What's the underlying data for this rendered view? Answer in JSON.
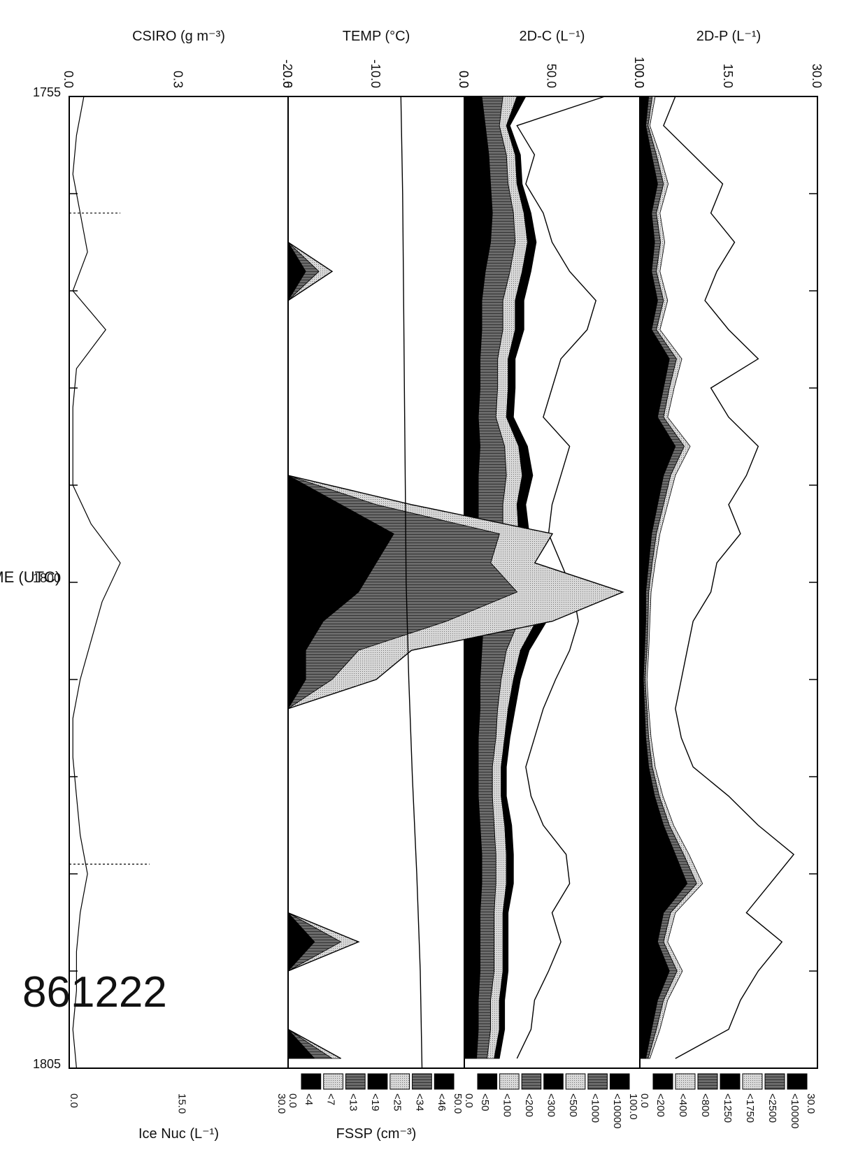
{
  "flight_label": "861222",
  "chart_data": [
    {
      "type": "area",
      "panel": "2d-p",
      "ylabel": "2D-P (L⁻¹)",
      "ylim": [
        0,
        30
      ],
      "left_ticks": [
        "0.0",
        "15.0",
        "30.0"
      ],
      "right_top": "30.0",
      "right_bottom": "0.0",
      "legend": [
        "<10000",
        "<2500",
        "<1750",
        "<1250",
        "<800",
        "<400",
        "<200"
      ],
      "legend_colors": [
        "#000000",
        "#8a8a8a",
        "#cfcfcf",
        "#000000",
        "#8a8a8a",
        "#cfcfcf",
        "#000000"
      ],
      "x": [
        0,
        0.3,
        0.6,
        0.9,
        1.2,
        1.5,
        1.8,
        2.1,
        2.4,
        2.7,
        3.0,
        3.3,
        3.6,
        3.9,
        4.2,
        4.5,
        4.8,
        5.1,
        5.4,
        5.7,
        6.0,
        6.3,
        6.6,
        6.9,
        7.2,
        7.5,
        7.8,
        8.1,
        8.4,
        8.7,
        9.0,
        9.3,
        9.6,
        9.9
      ],
      "total": [
        6,
        4,
        9,
        14,
        12,
        16,
        13,
        11,
        15,
        20,
        12,
        15,
        20,
        18,
        15,
        17,
        13,
        12,
        9,
        8,
        7,
        6,
        7,
        9,
        15,
        20,
        26,
        22,
        18,
        24,
        20,
        17,
        15,
        6
      ],
      "series": [
        {
          "values": [
            1.5,
            1,
            2,
            3,
            2,
            2.5,
            2,
            3,
            2,
            5,
            4,
            3,
            6,
            4,
            3,
            2,
            1.5,
            1,
            1,
            0.8,
            0.6,
            0.8,
            1,
            1.5,
            2.5,
            4,
            6,
            8,
            4,
            3,
            5,
            3,
            2,
            1
          ]
        },
        {
          "values": [
            0.6,
            0.4,
            0.8,
            1,
            0.8,
            1,
            0.8,
            1,
            0.8,
            1.2,
            1,
            1,
            1.5,
            1.2,
            1,
            0.8,
            0.6,
            0.5,
            0.4,
            0.4,
            0.3,
            0.4,
            0.5,
            0.6,
            0.8,
            1,
            1.4,
            1.6,
            1.2,
            1,
            1.3,
            1,
            0.8,
            0.4
          ]
        },
        {
          "values": [
            0.5,
            0.3,
            0.6,
            0.8,
            0.6,
            0.7,
            0.6,
            0.7,
            0.6,
            0.9,
            0.8,
            0.7,
            1,
            0.8,
            0.7,
            0.6,
            0.5,
            0.4,
            0.3,
            0.3,
            0.3,
            0.3,
            0.4,
            0.5,
            0.6,
            0.7,
            0.9,
            1,
            0.8,
            0.7,
            0.9,
            0.7,
            0.6,
            0.3
          ]
        }
      ]
    },
    {
      "type": "area",
      "panel": "2d-c",
      "ylabel": "2D-C (L⁻¹)",
      "ylim": [
        0,
        100
      ],
      "left_ticks": [
        "0.0",
        "50.0",
        "100.0"
      ],
      "right_top": "100.0",
      "right_bottom": "0.0",
      "legend": [
        "<10000",
        "<1000",
        "<500",
        "<300",
        "<200",
        "<100",
        "<50"
      ],
      "legend_colors": [
        "#000000",
        "#8a8a8a",
        "#cfcfcf",
        "#000000",
        "#8a8a8a",
        "#cfcfcf",
        "#000000"
      ],
      "x": [
        0,
        0.3,
        0.6,
        0.9,
        1.2,
        1.5,
        1.8,
        2.1,
        2.4,
        2.7,
        3.0,
        3.3,
        3.6,
        3.9,
        4.2,
        4.5,
        4.8,
        5.1,
        5.4,
        5.7,
        6.0,
        6.3,
        6.6,
        6.9,
        7.2,
        7.5,
        7.8,
        8.1,
        8.4,
        8.7,
        9.0,
        9.3,
        9.6,
        9.9
      ],
      "total": [
        80,
        30,
        40,
        35,
        45,
        50,
        60,
        75,
        70,
        55,
        50,
        45,
        60,
        55,
        50,
        48,
        55,
        62,
        65,
        60,
        52,
        45,
        40,
        35,
        38,
        45,
        58,
        60,
        50,
        55,
        48,
        40,
        38,
        30
      ],
      "series": [
        {
          "values": [
            10,
            12,
            14,
            15,
            16,
            15,
            12,
            10,
            10,
            9,
            9,
            8,
            9,
            8,
            8,
            8,
            9,
            10,
            11,
            10,
            9,
            9,
            8,
            8,
            8,
            9,
            10,
            10,
            9,
            9,
            9,
            8,
            8,
            7
          ]
        },
        {
          "values": [
            12,
            8,
            10,
            10,
            12,
            14,
            14,
            12,
            12,
            10,
            10,
            10,
            14,
            16,
            14,
            14,
            16,
            18,
            20,
            14,
            12,
            10,
            10,
            8,
            8,
            8,
            8,
            8,
            8,
            8,
            8,
            7,
            7,
            6
          ]
        },
        {
          "values": [
            8,
            4,
            5,
            5,
            6,
            7,
            7,
            7,
            7,
            6,
            6,
            6,
            8,
            9,
            8,
            9,
            9,
            10,
            10,
            8,
            7,
            6,
            5,
            5,
            5,
            6,
            6,
            6,
            5,
            5,
            5,
            5,
            5,
            4
          ]
        },
        {
          "values": [
            5,
            2,
            3,
            3,
            4,
            5,
            5,
            5,
            5,
            4,
            4,
            4,
            5,
            6,
            5,
            6,
            6,
            6,
            6,
            5,
            4,
            4,
            3,
            3,
            3,
            4,
            4,
            4,
            3,
            3,
            3,
            3,
            3,
            3
          ]
        }
      ]
    },
    {
      "type": "area",
      "panel": "temp-fssp",
      "ylabel": "TEMP (°C)",
      "ylim": [
        -20,
        0
      ],
      "left_ticks": [
        "-20.0",
        "-10.0",
        "0.0"
      ],
      "right_top": "50.0",
      "right_bottom": "0.0",
      "right_label": "FSSP (cm⁻³)",
      "legend": [
        "<46",
        "<34",
        "<25",
        "<19",
        "<13",
        "<7",
        "<4"
      ],
      "legend_colors": [
        "#000000",
        "#8a8a8a",
        "#cfcfcf",
        "#000000",
        "#8a8a8a",
        "#cfcfcf",
        "#000000"
      ],
      "temp": {
        "x": [
          0,
          1,
          2,
          3,
          4,
          5,
          6,
          7,
          8,
          9,
          10
        ],
        "values": [
          -7.2,
          -7.0,
          -6.9,
          -6.8,
          -6.7,
          -6.6,
          -6.3,
          -5.9,
          -5.4,
          -5.0,
          -4.8
        ]
      },
      "x": [
        0,
        0.3,
        0.6,
        0.9,
        1.2,
        1.5,
        1.8,
        2.1,
        2.4,
        2.7,
        3.0,
        3.3,
        3.6,
        3.9,
        4.2,
        4.5,
        4.8,
        5.1,
        5.4,
        5.7,
        6.0,
        6.3,
        6.6,
        6.9,
        7.2,
        7.5,
        7.8,
        8.1,
        8.4,
        8.7,
        9.0,
        9.3,
        9.6,
        9.9
      ],
      "total": [
        0,
        0,
        0,
        0,
        0,
        0,
        5,
        0,
        0,
        0,
        0,
        0,
        0,
        0,
        14,
        30,
        28,
        38,
        30,
        14,
        10,
        0,
        0,
        0,
        0,
        0,
        0,
        0,
        0,
        8,
        0,
        0,
        0,
        6
      ],
      "series": [
        {
          "values": [
            0,
            0,
            0,
            0,
            0,
            0,
            2,
            0,
            0,
            0,
            0,
            0,
            0,
            0,
            6,
            12,
            10,
            8,
            4,
            2,
            2,
            0,
            0,
            0,
            0,
            0,
            0,
            0,
            0,
            3,
            0,
            0,
            0,
            3
          ]
        },
        {
          "values": [
            0,
            0,
            0,
            0,
            0,
            0,
            1.5,
            0,
            0,
            0,
            0,
            0,
            0,
            0,
            4,
            12,
            13,
            18,
            14,
            6,
            3,
            0,
            0,
            0,
            0,
            0,
            0,
            0,
            0,
            3,
            0,
            0,
            0,
            2
          ]
        },
        {
          "values": [
            0,
            0,
            0,
            0,
            0,
            0,
            1.5,
            0,
            0,
            0,
            0,
            0,
            0,
            0,
            4,
            6,
            5,
            12,
            12,
            6,
            5,
            0,
            0,
            0,
            0,
            0,
            0,
            0,
            0,
            2,
            0,
            0,
            0,
            1
          ]
        }
      ]
    },
    {
      "type": "line",
      "panel": "csiro-icenuc",
      "ylabel": "CSIRO (g m⁻³)",
      "ylim": [
        0,
        0.6
      ],
      "left_ticks": [
        "0.0",
        "0.3",
        "0.6"
      ],
      "right_top": "30.0",
      "right_mid": "15.0",
      "right_bottom": "0.0",
      "right_label": "Ice Nuc (L⁻¹)",
      "xlabel": "TIME (UTC)",
      "x_tick_labels": [
        "1755",
        "1800",
        "1805"
      ],
      "xlim": [
        0,
        10
      ],
      "x": [
        0,
        0.4,
        0.8,
        1.2,
        1.6,
        2.0,
        2.4,
        2.8,
        3.2,
        3.6,
        4.0,
        4.4,
        4.8,
        5.2,
        5.6,
        6.0,
        6.4,
        6.8,
        7.2,
        7.6,
        8.0,
        8.4,
        8.8,
        9.2,
        9.6,
        10.0
      ],
      "values": [
        0.04,
        0.02,
        0.01,
        0.03,
        0.05,
        0.01,
        0.1,
        0.02,
        0.01,
        0.01,
        0.01,
        0.06,
        0.14,
        0.09,
        0.06,
        0.03,
        0.01,
        0.01,
        0.02,
        0.03,
        0.05,
        0.03,
        0.02,
        0.02,
        0.01,
        0.02
      ],
      "spikes": [
        {
          "x": 1.2,
          "value": 0.14
        },
        {
          "x": 7.9,
          "value": 0.22
        }
      ]
    }
  ]
}
